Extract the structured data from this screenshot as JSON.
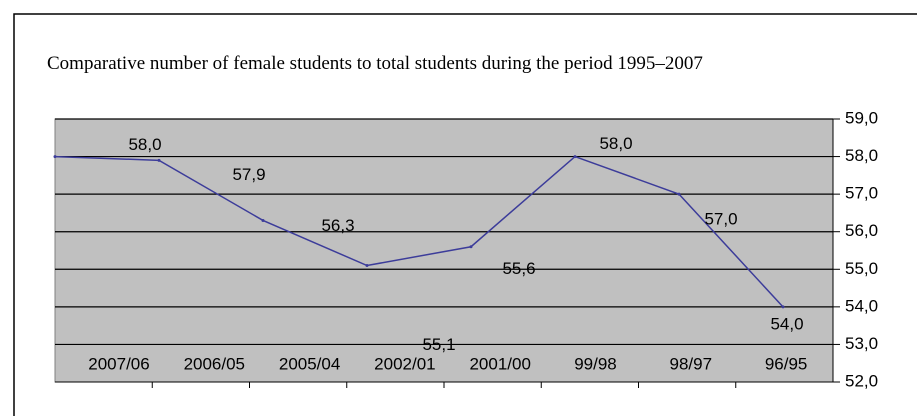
{
  "chart_data": {
    "type": "line",
    "title": "Comparative number of female students to total students during the period 1995–2007",
    "categories": [
      "2007/06",
      "2006/05",
      "2005/04",
      "2002/01",
      "2001/00",
      "99/98",
      "98/97",
      "96/95"
    ],
    "values": [
      58.0,
      57.9,
      56.3,
      55.1,
      55.6,
      58.0,
      57.0,
      54.0
    ],
    "value_labels": [
      "58,0",
      "57,9",
      "56,3",
      "55,1",
      "55,6",
      "58,0",
      "57,0",
      "54,0"
    ],
    "color": "#3c3c9a",
    "ylim": [
      52,
      59
    ],
    "yticks": [
      {
        "value": 52,
        "label": "52,0"
      },
      {
        "value": 53,
        "label": "53,0"
      },
      {
        "value": 54,
        "label": "54,0"
      },
      {
        "value": 55,
        "label": "55,0"
      },
      {
        "value": 56,
        "label": "56,0"
      },
      {
        "value": 57,
        "label": "57,0"
      },
      {
        "value": 58,
        "label": "58,0"
      },
      {
        "value": 59,
        "label": "59,0"
      }
    ],
    "grid": true
  }
}
